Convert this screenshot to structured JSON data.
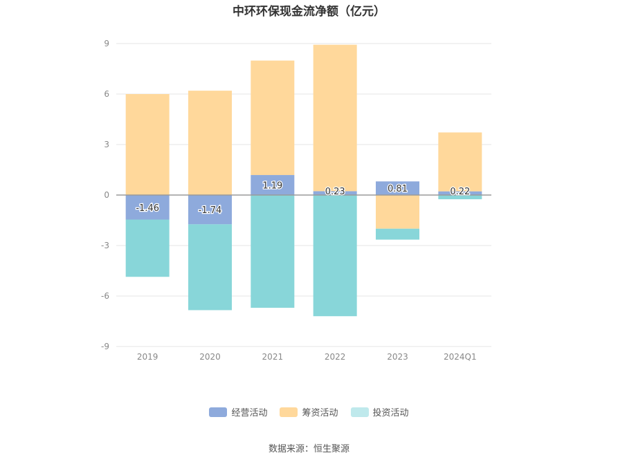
{
  "chart_data": {
    "type": "bar",
    "stacked": true,
    "title": "中环环保现金流净额（亿元）",
    "categories": [
      "2019",
      "2020",
      "2021",
      "2022",
      "2023",
      "2024Q1"
    ],
    "series": [
      {
        "name": "经营活动",
        "color": "#8eaadc",
        "values": [
          -1.46,
          -1.74,
          1.19,
          0.23,
          0.81,
          0.22
        ],
        "labels": [
          "-1.46",
          "-1.74",
          "1.19",
          "0.23",
          "0.81",
          "0.22"
        ]
      },
      {
        "name": "筹资活动",
        "color": "#ffd89b",
        "values": [
          6.0,
          6.2,
          6.8,
          8.7,
          -2.0,
          3.5
        ]
      },
      {
        "name": "投资活动",
        "color": "#88d6d9",
        "values": [
          -3.4,
          -5.1,
          -6.7,
          -7.2,
          -0.65,
          -0.25
        ]
      }
    ],
    "ylim": [
      -9,
      9
    ],
    "yticks": [
      "9",
      "6",
      "3",
      "0",
      "-3",
      "-6",
      "-9"
    ],
    "legend_position": "bottom",
    "source": "数据来源：恒生聚源"
  }
}
